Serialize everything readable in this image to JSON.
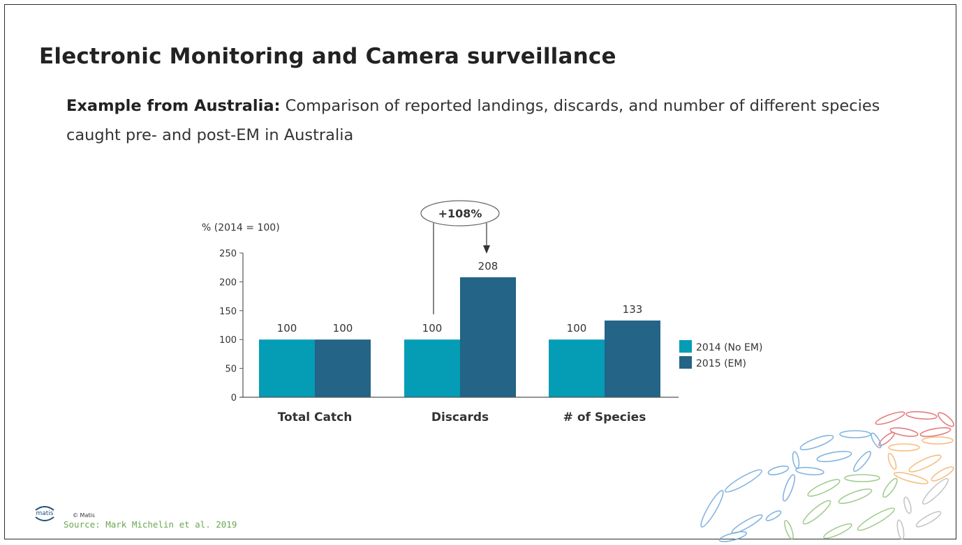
{
  "slide": {
    "title": "Electronic Monitoring and Camera surveillance",
    "subtitle_bold": "Example from Australia:",
    "subtitle_rest": " Comparison of reported landings, discards, and number of different species caught pre- and post-EM in Australia",
    "copyright": "© Matis",
    "source": "Source: Mark Michelin et al. 2019",
    "logo_text": "matis"
  },
  "chart_data": {
    "type": "bar",
    "ylabel": "% (2014 = 100)",
    "ylim": [
      0,
      250
    ],
    "yticks": [
      0,
      50,
      100,
      150,
      200,
      250
    ],
    "categories": [
      "Total Catch",
      "Discards",
      "# of Species"
    ],
    "series": [
      {
        "name": "2014 (No EM)",
        "values": [
          100,
          100,
          100
        ],
        "color": "#049db5"
      },
      {
        "name": "2015 (EM)",
        "values": [
          100,
          208,
          133
        ],
        "color": "#236487"
      }
    ],
    "annotation": {
      "text": "+108%",
      "category": "Discards"
    },
    "legend": "right"
  }
}
